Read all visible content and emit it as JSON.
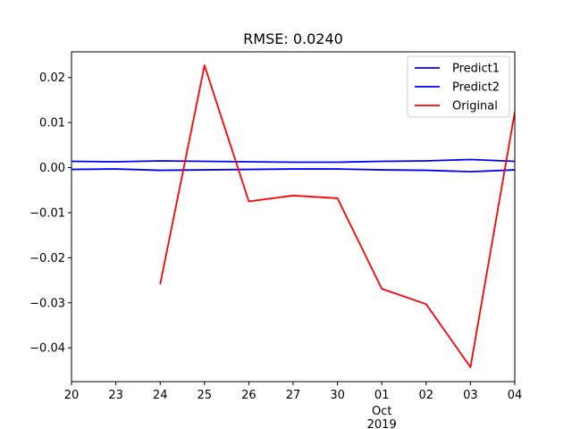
{
  "chart_data": {
    "type": "line",
    "title": "RMSE: 0.0240",
    "xlabel": "",
    "ylabel": "",
    "x_tick_labels": [
      "20",
      "23",
      "24",
      "25",
      "26",
      "27",
      "30",
      "01",
      "02",
      "03",
      "04"
    ],
    "x_secondary_labels": [
      {
        "at": "01",
        "lines": [
          "Oct",
          "2019"
        ]
      }
    ],
    "y_ticks": [
      0.02,
      0.01,
      0.0,
      -0.01,
      -0.02,
      -0.03,
      -0.04
    ],
    "y_tick_labels": [
      "0.02",
      "0.01",
      "0.00",
      "−0.01",
      "−0.02",
      "−0.03",
      "−0.04"
    ],
    "ylim": [
      -0.0475,
      0.0257
    ],
    "legend_position": "top-right",
    "grid": false,
    "series": [
      {
        "name": "Predict1",
        "color": "#0000ff",
        "x": [
          "20",
          "23",
          "24",
          "25",
          "26",
          "27",
          "30",
          "01",
          "02",
          "03",
          "04"
        ],
        "values": [
          0.0014,
          0.0013,
          0.0015,
          0.0014,
          0.0013,
          0.0012,
          0.0012,
          0.0014,
          0.0015,
          0.0018,
          0.0014
        ]
      },
      {
        "name": "Predict2",
        "color": "#0000ff",
        "x": [
          "20",
          "23",
          "24",
          "25",
          "26",
          "27",
          "30",
          "01",
          "02",
          "03",
          "04"
        ],
        "values": [
          -0.0004,
          -0.0003,
          -0.0006,
          -0.0005,
          -0.0004,
          -0.0003,
          -0.0003,
          -0.0005,
          -0.0006,
          -0.0009,
          -0.0005
        ]
      },
      {
        "name": "Original",
        "color": "#ff0000",
        "x": [
          "24",
          "25",
          "26",
          "27",
          "30",
          "01",
          "02",
          "03",
          "04"
        ],
        "values": [
          -0.0259,
          0.0227,
          -0.0075,
          -0.0062,
          -0.0068,
          -0.0269,
          -0.0303,
          -0.0443,
          0.0124
        ]
      }
    ]
  }
}
